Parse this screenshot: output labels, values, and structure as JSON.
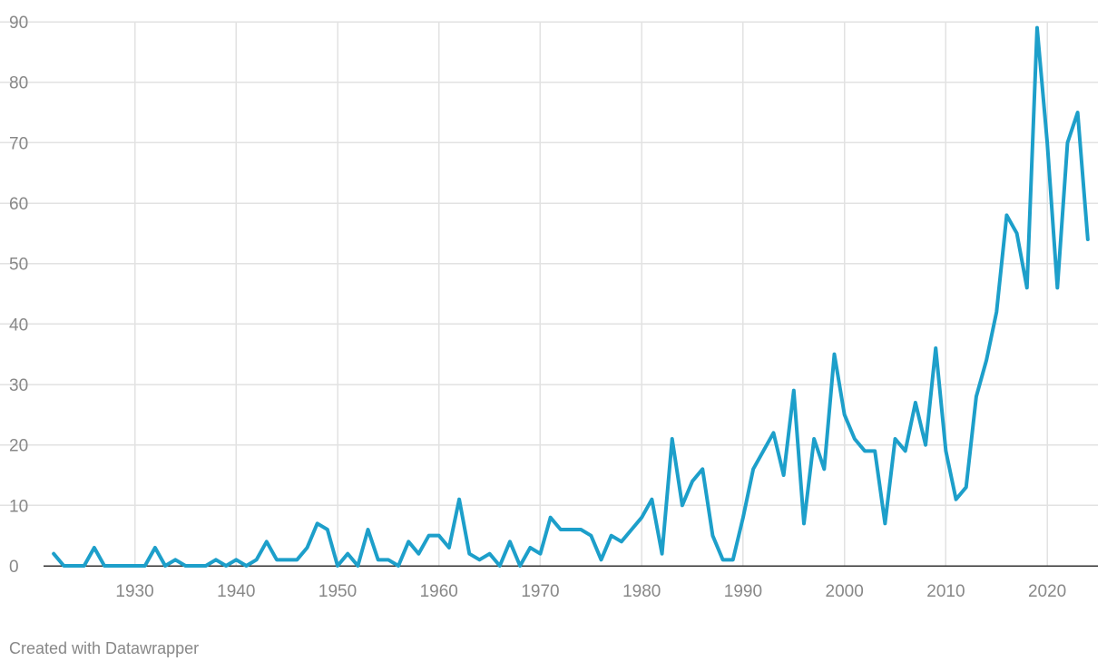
{
  "chart_data": {
    "type": "line",
    "title": "",
    "xlabel": "",
    "ylabel": "",
    "xlim": [
      1921,
      2025
    ],
    "ylim": [
      0,
      90
    ],
    "x_ticks": [
      1930,
      1940,
      1950,
      1960,
      1970,
      1980,
      1990,
      2000,
      2010,
      2020
    ],
    "y_ticks": [
      0,
      10,
      20,
      30,
      40,
      50,
      60,
      70,
      80,
      90
    ],
    "grid": true,
    "legend": "none",
    "series": [
      {
        "color": "#1d9fca",
        "points": [
          [
            1922,
            2
          ],
          [
            1923,
            0
          ],
          [
            1924,
            0
          ],
          [
            1925,
            0
          ],
          [
            1926,
            3
          ],
          [
            1927,
            0
          ],
          [
            1928,
            0
          ],
          [
            1929,
            0
          ],
          [
            1930,
            0
          ],
          [
            1931,
            0
          ],
          [
            1932,
            3
          ],
          [
            1933,
            0
          ],
          [
            1934,
            1
          ],
          [
            1935,
            0
          ],
          [
            1936,
            0
          ],
          [
            1937,
            0
          ],
          [
            1938,
            1
          ],
          [
            1939,
            0
          ],
          [
            1940,
            1
          ],
          [
            1941,
            0
          ],
          [
            1942,
            1
          ],
          [
            1943,
            4
          ],
          [
            1944,
            1
          ],
          [
            1945,
            1
          ],
          [
            1946,
            1
          ],
          [
            1947,
            3
          ],
          [
            1948,
            7
          ],
          [
            1949,
            6
          ],
          [
            1950,
            0
          ],
          [
            1951,
            2
          ],
          [
            1952,
            0
          ],
          [
            1953,
            6
          ],
          [
            1954,
            1
          ],
          [
            1955,
            1
          ],
          [
            1956,
            0
          ],
          [
            1957,
            4
          ],
          [
            1958,
            2
          ],
          [
            1959,
            5
          ],
          [
            1960,
            5
          ],
          [
            1961,
            3
          ],
          [
            1962,
            11
          ],
          [
            1963,
            2
          ],
          [
            1964,
            1
          ],
          [
            1965,
            2
          ],
          [
            1966,
            0
          ],
          [
            1967,
            4
          ],
          [
            1968,
            0
          ],
          [
            1969,
            3
          ],
          [
            1970,
            2
          ],
          [
            1971,
            8
          ],
          [
            1972,
            6
          ],
          [
            1973,
            6
          ],
          [
            1974,
            6
          ],
          [
            1975,
            5
          ],
          [
            1976,
            1
          ],
          [
            1977,
            5
          ],
          [
            1978,
            4
          ],
          [
            1979,
            6
          ],
          [
            1980,
            8
          ],
          [
            1981,
            11
          ],
          [
            1982,
            2
          ],
          [
            1983,
            21
          ],
          [
            1984,
            10
          ],
          [
            1985,
            14
          ],
          [
            1986,
            16
          ],
          [
            1987,
            5
          ],
          [
            1988,
            1
          ],
          [
            1989,
            1
          ],
          [
            1990,
            8
          ],
          [
            1991,
            16
          ],
          [
            1992,
            19
          ],
          [
            1993,
            22
          ],
          [
            1994,
            15
          ],
          [
            1995,
            29
          ],
          [
            1996,
            7
          ],
          [
            1997,
            21
          ],
          [
            1998,
            16
          ],
          [
            1999,
            35
          ],
          [
            2000,
            25
          ],
          [
            2001,
            21
          ],
          [
            2002,
            19
          ],
          [
            2003,
            19
          ],
          [
            2004,
            7
          ],
          [
            2005,
            21
          ],
          [
            2006,
            19
          ],
          [
            2007,
            27
          ],
          [
            2008,
            20
          ],
          [
            2009,
            36
          ],
          [
            2010,
            19
          ],
          [
            2011,
            11
          ],
          [
            2012,
            13
          ],
          [
            2013,
            28
          ],
          [
            2014,
            34
          ],
          [
            2015,
            42
          ],
          [
            2016,
            58
          ],
          [
            2017,
            55
          ],
          [
            2018,
            46
          ],
          [
            2019,
            89
          ],
          [
            2020,
            70
          ],
          [
            2021,
            46
          ],
          [
            2022,
            70
          ],
          [
            2023,
            75
          ],
          [
            2024,
            54
          ]
        ]
      }
    ]
  },
  "footer": {
    "credit": "Created with Datawrapper"
  }
}
